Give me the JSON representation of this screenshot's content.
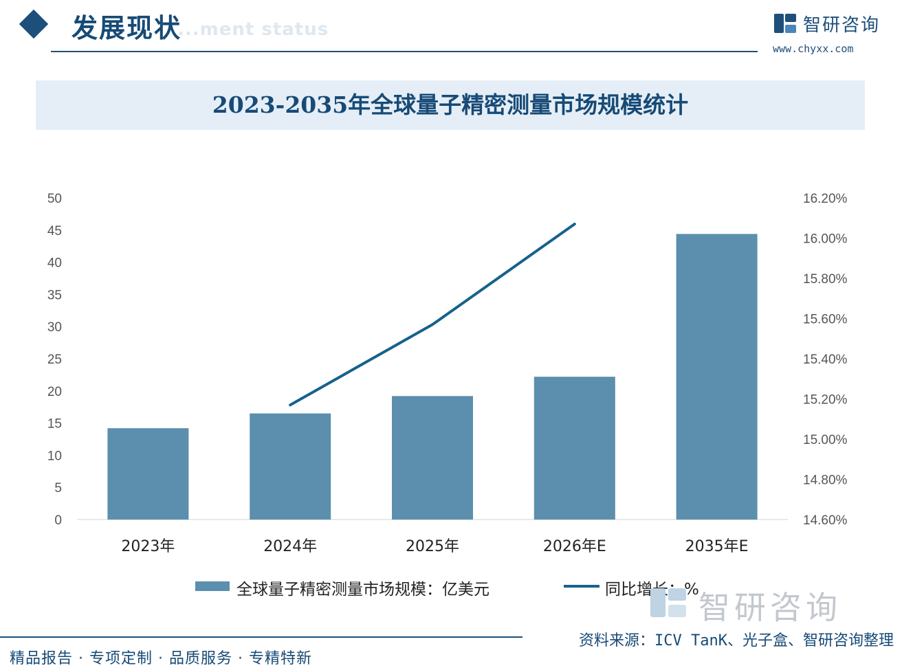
{
  "header": {
    "section_title": "发展现状",
    "section_subtitle": "...ment status",
    "logo_name": "智研咨询",
    "logo_url": "www.chyxx.com"
  },
  "chart_data": {
    "type": "bar",
    "title": "2023-2035年全球量子精密测量市场规模统计",
    "categories": [
      "2023年",
      "2024年",
      "2025年",
      "2026年E",
      "2035年E"
    ],
    "series": [
      {
        "name": "全球量子精密测量市场规模：亿美元",
        "type": "bar",
        "axis": "left",
        "values": [
          14.2,
          16.5,
          19.2,
          22.2,
          44.4
        ]
      },
      {
        "name": "同比增长：%",
        "type": "line",
        "axis": "right",
        "values": [
          null,
          15.17,
          15.57,
          16.07,
          null
        ]
      }
    ],
    "ylim": [
      0,
      50
    ],
    "y_ticks": [
      "0",
      "5",
      "10",
      "15",
      "20",
      "25",
      "30",
      "35",
      "40",
      "45",
      "50"
    ],
    "y2lim": [
      14.6,
      16.2
    ],
    "y2_ticks": [
      "14.60%",
      "14.80%",
      "15.00%",
      "15.20%",
      "15.40%",
      "15.60%",
      "15.80%",
      "16.00%",
      "16.20%"
    ],
    "legend_position": "bottom",
    "grid": false,
    "colors": {
      "bar": "#5b8fad",
      "line": "#15628c"
    }
  },
  "watermark": {
    "name": "智研咨询"
  },
  "footer": {
    "source": "资料来源：ICV TanK、光子盒、智研咨询整理",
    "slogan": "精品报告 · 专项定制 · 品质服务 · 专精特新"
  }
}
